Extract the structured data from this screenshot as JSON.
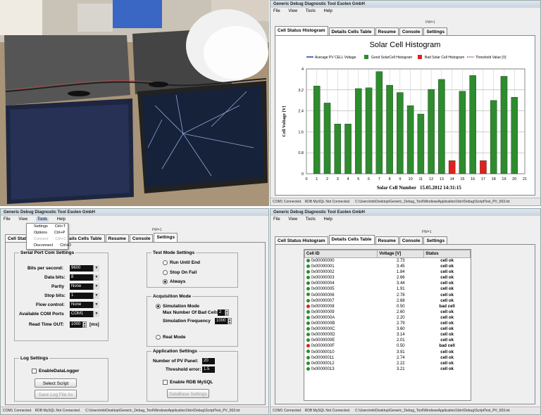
{
  "app_title": "Generic Debug Diagnostic Tool Esolen GmbH",
  "menu": [
    "File",
    "View",
    "Tools",
    "Help"
  ],
  "fw_label": "FW=1",
  "tabs": [
    "Cell Status Histogram",
    "Details Cells Table",
    "Resume",
    "Console",
    "Settings"
  ],
  "status": {
    "com": "COM1 Connected.",
    "rdb": "RDB MySQL Not Connected.",
    "path_tr": "C:\\Users\\mb\\Desktop\\Generic_Debug_Tool\\WindowsApplication1\\bin\\Debug\\ScriptTest_PV_003.txt",
    "path_bl": "C:\\Users\\mb\\Desktop\\Generic_Debug_Tool\\WindowsApplication1\\bin\\Debug\\ScriptTest_PV_003.txt"
  },
  "colors": {
    "good": "#2e8b2e",
    "bad": "#e02020",
    "avg": "#1f3f9f",
    "threshold": "#7a1a1a"
  },
  "chart_data": {
    "type": "bar",
    "title": "Solar Cell Histogram",
    "legend": [
      "Average PV CELL Voltage",
      "Good SolarCell Histogram",
      "Bad Solar Cell Histogram",
      "Threshold Value [V]"
    ],
    "legend_position": "top",
    "xlabel": "Solar Cell Number",
    "date_label": "15.05.2012 14:31:15",
    "ylabel": "Cell Voltage [V]",
    "ylim": [
      0,
      4
    ],
    "yticks": [
      "0",
      "0.8",
      "1.6",
      "2.4",
      "3.2",
      "4"
    ],
    "categories": [
      "1",
      "2",
      "3",
      "4",
      "5",
      "6",
      "7",
      "8",
      "9",
      "10",
      "11",
      "12",
      "13",
      "14",
      "15",
      "16",
      "17",
      "18",
      "19",
      "20"
    ],
    "xtick_labels": [
      "0",
      "1",
      "2",
      "3",
      "4",
      "5",
      "6",
      "7",
      "8",
      "9",
      "10",
      "11",
      "12",
      "13",
      "14",
      "15",
      "16",
      "17",
      "18",
      "19",
      "20",
      "21"
    ],
    "values": [
      3.35,
      2.7,
      1.9,
      1.9,
      3.25,
      3.28,
      3.9,
      3.38,
      3.1,
      2.6,
      2.28,
      3.22,
      3.6,
      0.5,
      3.15,
      3.75,
      0.5,
      2.8,
      3.72,
      2.92
    ],
    "status": [
      "good",
      "good",
      "good",
      "good",
      "good",
      "good",
      "good",
      "good",
      "good",
      "good",
      "good",
      "good",
      "good",
      "bad",
      "good",
      "good",
      "bad",
      "good",
      "good",
      "good"
    ],
    "grid": true
  },
  "tools_menu": [
    {
      "label": "Settings",
      "shortcut": "Ctrl+T",
      "enabled": true
    },
    {
      "label": "Options",
      "shortcut": "Ctrl+P",
      "enabled": true
    },
    {
      "label": "Connect",
      "shortcut": "Ctrl+C",
      "enabled": false
    },
    {
      "label": "Disconnect",
      "shortcut": "Ctrl+D",
      "enabled": true
    }
  ],
  "settings": {
    "serial": {
      "title": "Serial Port Com Settings",
      "bits_label": "Bits per second:",
      "bits": "9600",
      "data_label": "Data bits:",
      "data": "8",
      "parity_label": "Parity",
      "parity": "None",
      "stop_label": "Stop bits:",
      "stop": "1",
      "flow_label": "Flow control:",
      "flow": "None",
      "ports_label": "Available COM Ports",
      "port": "COM1",
      "timeout_label": "Read Time OUT:",
      "timeout": "1000",
      "timeout_unit": "[ms]"
    },
    "test_mode": {
      "title": "Test Mode Settings",
      "opt1": "Run Until End",
      "opt2": "Stop On Fail",
      "opt3": "Always"
    },
    "acq": {
      "title": "Acquisition Mode",
      "sim": "Simulation Mode",
      "max_label": "Max Number Of Bad Cells",
      "max": "2",
      "freq_label": "Simulation Frequency",
      "freq": "1000",
      "real": "Real Mode"
    },
    "log": {
      "title": "Log Settings",
      "enable": "EnableDataLogger",
      "select": "Select Script",
      "save": "Save Log File As"
    },
    "app": {
      "title": "Application Settings",
      "pv_label": "Number of PV Panel:",
      "pv": "20",
      "thr_label": "Threshold error:",
      "thr": "1.5",
      "rdb": "Enable RDB MySQL",
      "db": "DataBase Settings"
    }
  },
  "table": {
    "headers": [
      "Cell ID",
      "Voltage [V]",
      "Status"
    ],
    "rows": [
      {
        "id": "0x00000000",
        "v": "2.73",
        "s": "cell ok",
        "ok": true
      },
      {
        "id": "0x00000001",
        "v": "3.45",
        "s": "cell ok",
        "ok": true
      },
      {
        "id": "0x00000002",
        "v": "1.84",
        "s": "cell ok",
        "ok": true
      },
      {
        "id": "0x00000003",
        "v": "2.66",
        "s": "cell ok",
        "ok": true
      },
      {
        "id": "0x00000004",
        "v": "3.44",
        "s": "cell ok",
        "ok": true
      },
      {
        "id": "0x00000005",
        "v": "1.91",
        "s": "cell ok",
        "ok": true
      },
      {
        "id": "0x00000006",
        "v": "2.78",
        "s": "cell ok",
        "ok": true
      },
      {
        "id": "0x00000007",
        "v": "2.68",
        "s": "cell ok",
        "ok": true
      },
      {
        "id": "0x00000008",
        "v": "0.50",
        "s": "bad cell",
        "ok": false
      },
      {
        "id": "0x00000009",
        "v": "2.60",
        "s": "cell ok",
        "ok": true
      },
      {
        "id": "0x0000000A",
        "v": "2.20",
        "s": "cell ok",
        "ok": true
      },
      {
        "id": "0x0000000B",
        "v": "2.79",
        "s": "cell ok",
        "ok": true
      },
      {
        "id": "0x0000000C",
        "v": "3.60",
        "s": "cell ok",
        "ok": true
      },
      {
        "id": "0x0000000D",
        "v": "3.14",
        "s": "cell ok",
        "ok": true
      },
      {
        "id": "0x0000000E",
        "v": "2.01",
        "s": "cell ok",
        "ok": true
      },
      {
        "id": "0x0000000F",
        "v": "0.50",
        "s": "bad cell",
        "ok": false
      },
      {
        "id": "0x00000010",
        "v": "3.91",
        "s": "cell ok",
        "ok": true
      },
      {
        "id": "0x00000011",
        "v": "2.74",
        "s": "cell ok",
        "ok": true
      },
      {
        "id": "0x00000012",
        "v": "2.22",
        "s": "cell ok",
        "ok": true
      },
      {
        "id": "0x00000013",
        "v": "3.21",
        "s": "cell ok",
        "ok": true
      }
    ]
  }
}
